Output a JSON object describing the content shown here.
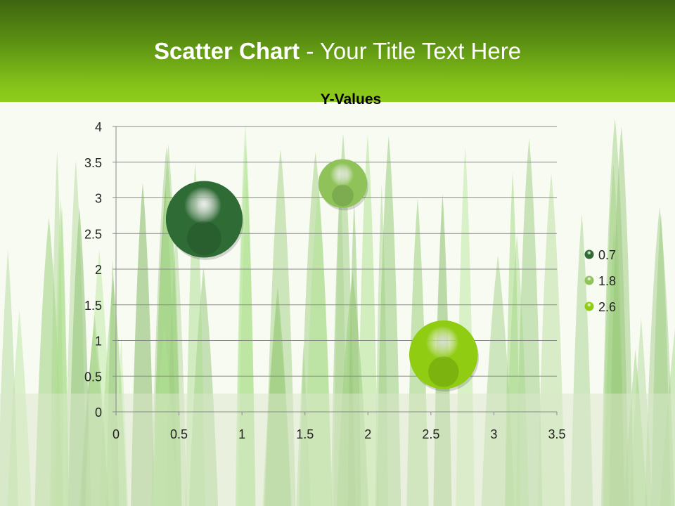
{
  "slide": {
    "title_bold": "Scatter Chart",
    "title_rest": " - Your Title Text Here",
    "header_color_top": "#3e6510",
    "header_color_bottom": "#8fcc1c"
  },
  "chart_data": {
    "type": "scatter",
    "variant": "bubble",
    "title": "Y-Values",
    "xlim": [
      0,
      3.5
    ],
    "ylim": [
      0,
      4
    ],
    "x_ticks": [
      "0",
      "0.5",
      "1",
      "1.5",
      "2",
      "2.5",
      "3",
      "3.5"
    ],
    "y_ticks": [
      "0",
      "0.5",
      "1",
      "1.5",
      "2",
      "2.5",
      "3",
      "3.5",
      "4"
    ],
    "grid": "horizontal",
    "legend_placement": "right",
    "points": [
      {
        "name": "0.7",
        "x": 0.7,
        "y": 2.7,
        "size": 10,
        "color": "#2f6b35"
      },
      {
        "name": "1.8",
        "x": 1.8,
        "y": 3.2,
        "size": 4,
        "color": "#8fc35a"
      },
      {
        "name": "2.6",
        "x": 2.6,
        "y": 0.8,
        "size": 8,
        "color": "#8fcc12"
      }
    ]
  }
}
